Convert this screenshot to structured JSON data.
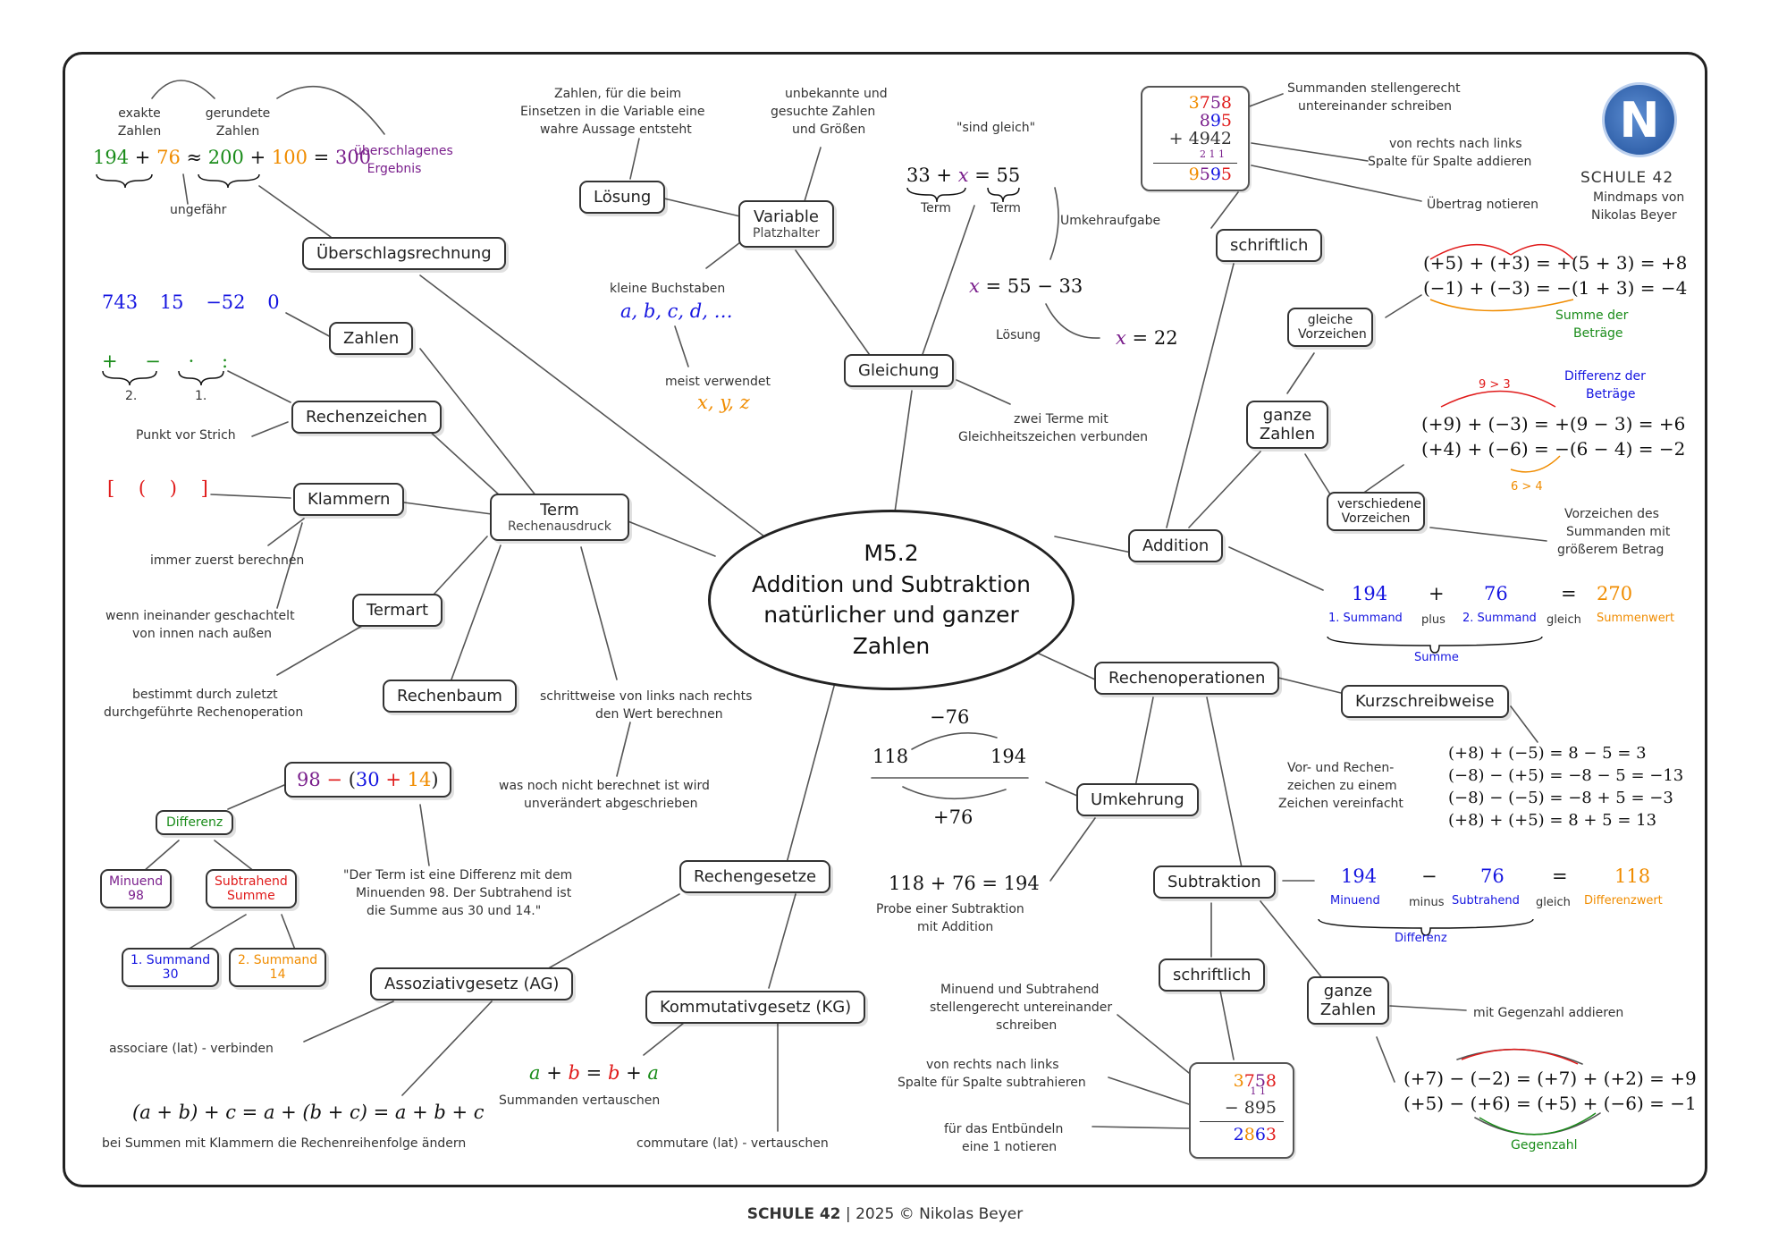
{
  "center": {
    "line1": "M5.2",
    "line2": "Addition und Subtraktion",
    "line3": "natürlicher und ganzer",
    "line4": "Zahlen"
  },
  "logo": {
    "school": "SCHULE 42",
    "line1": "Mindmaps von",
    "line2": "Nikolas Beyer",
    "letter": "N"
  },
  "footer": {
    "school": "SCHULE 42",
    "sep": "|",
    "copyright": "2025 © Nikolas Beyer"
  },
  "nodes": {
    "ueberschlag": "Überschlagsrechnung",
    "zahlen": "Zahlen",
    "rechenzeichen": "Rechenzeichen",
    "klammern": "Klammern",
    "term": "Term",
    "term_sub": "Rechenausdruck",
    "termart": "Termart",
    "rechenbaum": "Rechenbaum",
    "loesung": "Lösung",
    "variable": "Variable",
    "variable_sub": "Platzhalter",
    "gleichung": "Gleichung",
    "schriftlich_add": "schriftlich",
    "gleiche_vz": "gleiche Vorzeichen",
    "ganze_zahlen_add": "ganze Zahlen",
    "versch_vz": "verschiedene Vorzeichen",
    "addition": "Addition",
    "rechenoperationen": "Rechenoperationen",
    "kurzschreibweise": "Kurzschreibweise",
    "umkehrung": "Umkehrung",
    "subtraktion": "Subtraktion",
    "schriftlich_sub": "schriftlich",
    "ganze_zahlen_sub": "ganze Zahlen",
    "rechengesetze": "Rechengesetze",
    "ag": "Assoziativgesetz (AG)",
    "kg": "Kommutativgesetz (KG)",
    "differenz": "Differenz",
    "minuend": "Minuend",
    "minuend_val": "98",
    "subtrahend": "Subtrahend",
    "subtrahend_sub": "Summe",
    "summand1": "1. Summand",
    "summand1_val": "30",
    "summand2": "2. Summand",
    "summand2_val": "14"
  },
  "notes": {
    "exakte": "exakte Zahlen",
    "gerundete": "gerundete Zahlen",
    "ueberschlagenes": "überschlagenes Ergebnis",
    "ungefaehr": "ungefähr",
    "punkt_vor_strich": "Punkt vor Strich",
    "zuerst": "immer zuerst berechnen",
    "geschachtelt1": "wenn ineinander geschachtelt",
    "geschachtelt2": "von innen nach außen",
    "termart1": "bestimmt durch zuletzt",
    "termart2": "durchgeführte Rechenoperation",
    "schrittweise1": "schrittweise von links nach rechts",
    "schrittweise2": "den Wert berechnen",
    "unveraendert1": "was noch nicht berechnet ist wird",
    "unveraendert2": "unverändert abgeschrieben",
    "quote1": "\"Der Term ist eine Differenz mit dem",
    "quote2": "Minuenden 98. Der Subtrahend ist",
    "quote3": "die Summe aus 30 und 14.\"",
    "loesung1": "Zahlen, für die beim",
    "loesung2": "Einsetzen in die Variable eine",
    "loesung3": "wahre Aussage entsteht",
    "unbekannte1": "unbekannte und",
    "unbekannte2": "gesuchte Zahlen",
    "unbekannte3": "und Größen",
    "kleine": "kleine Buchstaben",
    "meist": "meist verwendet",
    "sind_gleich": "\"sind gleich\"",
    "term_lbl": "Term",
    "umkehraufgabe": "Umkehraufgabe",
    "loesung_lbl": "Lösung",
    "zwei_terme1": "zwei Terme mit",
    "zwei_terme2": "Gleichheitszeichen verbunden",
    "stellengerecht1": "Summanden stellengerecht",
    "stellengerecht2": "untereinander schreiben",
    "rechts_links1": "von rechts nach links",
    "rechts_links2": "Spalte für Spalte addieren",
    "uebertrag": "Übertrag notieren",
    "summe_betraege1": "Summe der",
    "summe_betraege2": "Beträge",
    "diff_betraege1": "Differenz der",
    "diff_betraege2": "Beträge",
    "groesser1": "9 > 3",
    "groesser2": "6 > 4",
    "vz_des1": "Vorzeichen des",
    "vz_des2": "Summanden mit",
    "vz_des3": "größerem Betrag",
    "summand1_lbl": "1. Summand",
    "plus_lbl": "plus",
    "summand2_lbl": "2. Summand",
    "gleich_lbl": "gleich",
    "summenwert_lbl": "Summenwert",
    "summe_lbl": "Summe",
    "kurz1": "Vor- und Rechen-",
    "kurz2": "zeichen zu einem",
    "kurz3": "Zeichen vereinfacht",
    "probe1": "Probe einer Subtraktion",
    "probe2": "mit Addition",
    "minuend_lbl": "Minuend",
    "minus_lbl": "minus",
    "subtrahend_lbl": "Subtrahend",
    "gleich_lbl2": "gleich",
    "differenzwert_lbl": "Differenzwert",
    "differenz_lbl": "Differenz",
    "stellen_sub1": "Minuend und Subtrahend",
    "stellen_sub2": "stellengerecht untereinander",
    "stellen_sub3": "schreiben",
    "rl_sub1": "von rechts nach links",
    "rl_sub2": "Spalte für Spalte subtrahieren",
    "entbuendeln1": "für das Entbündeln",
    "entbuendeln2": "eine 1 notieren",
    "gegenzahl_add": "mit Gegenzahl addieren",
    "gegenzahl": "Gegenzahl",
    "associare": "associare (lat) - verbinden",
    "klammern_summen": "bei Summen mit Klammern die Rechenreihenfolge ändern",
    "summanden_vertauschen": "Summanden vertauschen",
    "commutare": "commutare (lat) - vertauschen",
    "zwei": "2.",
    "eins": "1."
  },
  "math": {
    "ueberschlag": [
      "194",
      "+",
      "76",
      "≈",
      "200",
      "+",
      "100",
      "=",
      "300"
    ],
    "zahlen": [
      "743",
      "15",
      "−52",
      "0"
    ],
    "zeichen": [
      "+",
      "−",
      "·",
      ":"
    ],
    "klammern": [
      "[",
      "(",
      ")",
      "]"
    ],
    "tree_term": [
      "98",
      "−",
      "(",
      "30",
      "+",
      "14",
      ")"
    ],
    "variables": "a, b, c, d, …",
    "meist_vars": "x, y, z",
    "gleichung": [
      "33",
      "+",
      "x",
      "=",
      "55"
    ],
    "umkehr": [
      "x",
      "=",
      "55 − 33"
    ],
    "loesung_eq": [
      "x",
      "=",
      "22"
    ],
    "calc_add": [
      "3758",
      "895",
      "+ 4942",
      "2 1 1",
      "9595"
    ],
    "gleiche_row1": "(+5) + (+3) = +(5 + 3) = +8",
    "gleiche_row2": "(−1) + (−3) = −(1 + 3) = −4",
    "versch_row1": "(+9) + (−3) = +(9 − 3) = +6",
    "versch_row2": "(+4) + (−6) = −(6 − 4) = −2",
    "add_example": [
      "194",
      "+",
      "76",
      "=",
      "270"
    ],
    "kurz_rows": [
      "(+8) + (−5) =    8 − 5 = 3",
      "(−8) − (+5) = −8 − 5 = −13",
      "(−8) − (−5) = −8 + 5 = −3",
      "(+8) + (+5) =    8 + 5 = 13"
    ],
    "umkehr_numbers": [
      "−76",
      "118",
      "194",
      "+76"
    ],
    "probe_eq": "118 + 76 = 194",
    "sub_example": [
      "194",
      "−",
      "76",
      "=",
      "118"
    ],
    "calc_sub": [
      "3758",
      "1 1",
      "−    895",
      "2863"
    ],
    "ganze_sub_row1": "(+7) − (−2) = (+7) + (+2) = +9",
    "ganze_sub_row2": "(+5) − (+6) = (+5) + (−6) = −1",
    "ag_eq": "(a + b) + c = a + (b + c) = a + b + c",
    "kg_eq": [
      "a",
      "+",
      "b",
      "=",
      "b",
      "+",
      "a"
    ]
  },
  "colors": {
    "green": "#1a8c1a",
    "orange": "#f08c00",
    "purple": "#7a1f8c",
    "blue": "#1515e0",
    "red": "#e01a1a",
    "line": "#555555"
  }
}
